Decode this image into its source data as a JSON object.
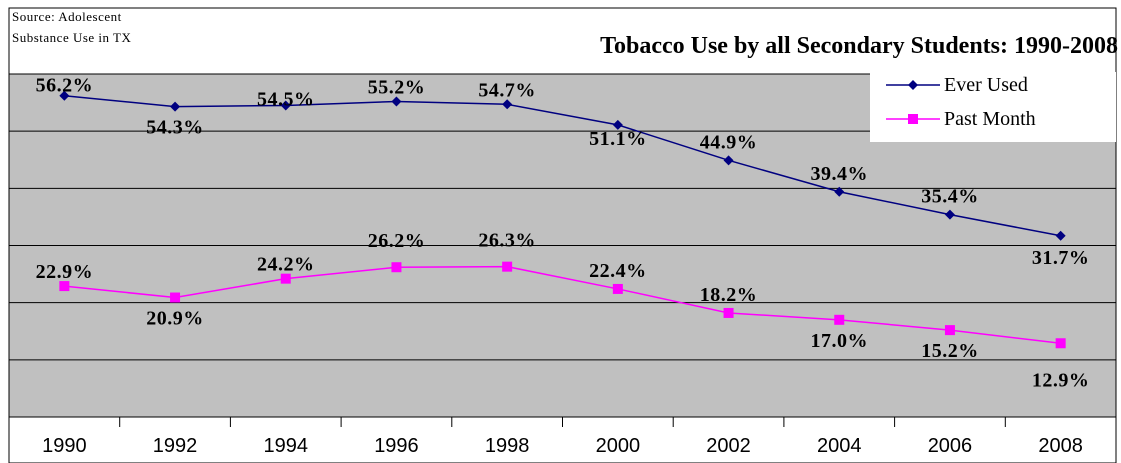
{
  "source_note": [
    "Source: Adolescent",
    "Substance Use in TX"
  ],
  "chart_data": {
    "type": "line",
    "title": "Tobacco Use by all Secondary Students: 1990-2008",
    "x": [
      "1990",
      "1992",
      "1994",
      "1996",
      "1998",
      "2000",
      "2002",
      "2004",
      "2006",
      "2008"
    ],
    "ylim": [
      0,
      60
    ],
    "grid": true,
    "legend_position": "top-right",
    "series": [
      {
        "name": "Ever Used",
        "color": "#000080",
        "marker": "diamond",
        "values": [
          56.2,
          54.3,
          54.5,
          55.2,
          54.7,
          51.1,
          44.9,
          39.4,
          35.4,
          31.7
        ],
        "labels": [
          "56.2%",
          "54.3%",
          "54.5%",
          "55.2%",
          "54.7%",
          "51.1%",
          "44.9%",
          "39.4%",
          "35.4%",
          "31.7%"
        ]
      },
      {
        "name": "Past Month",
        "color": "#ff00ff",
        "marker": "square",
        "values": [
          22.9,
          20.9,
          24.2,
          26.2,
          26.3,
          22.4,
          18.2,
          17.0,
          15.2,
          12.9
        ],
        "labels": [
          "22.9%",
          "20.9%",
          "24.2%",
          "26.2%",
          "26.3%",
          "22.4%",
          "18.2%",
          "17.0%",
          "15.2%",
          "12.9%"
        ]
      }
    ]
  }
}
